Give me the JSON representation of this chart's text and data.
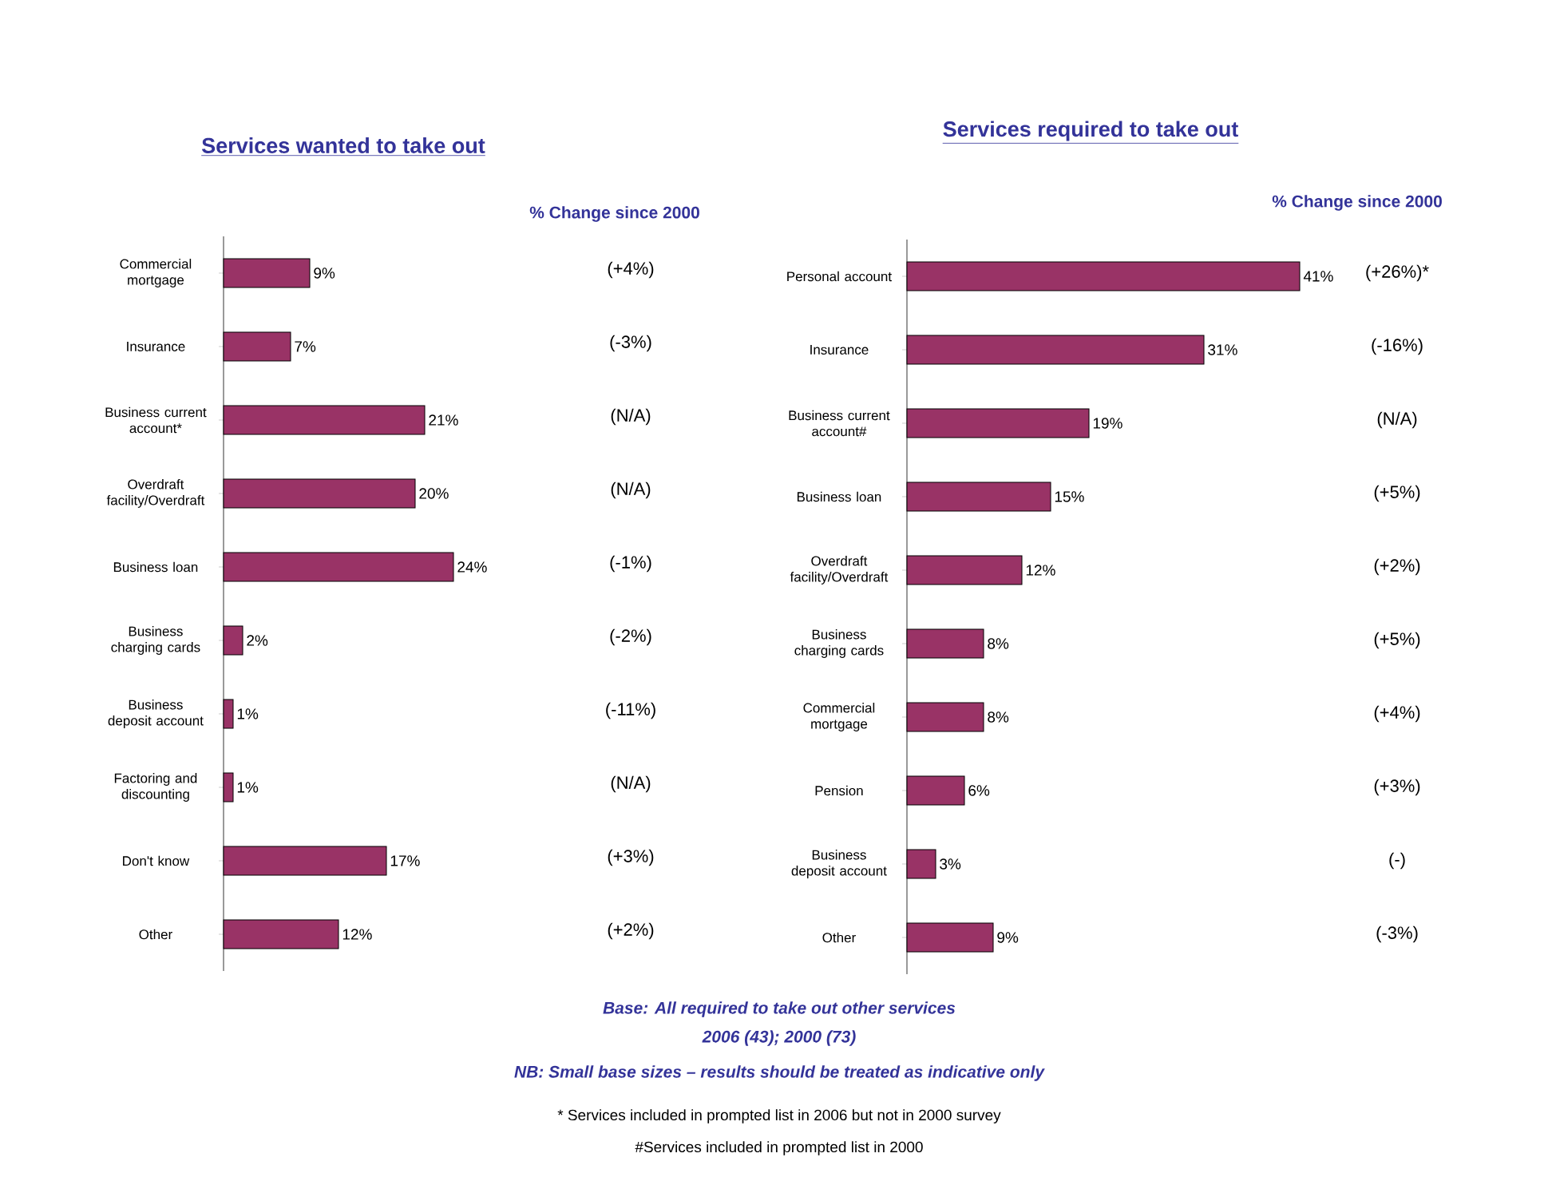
{
  "chart_data": [
    {
      "type": "bar",
      "orientation": "horizontal",
      "title": "Services wanted to take out",
      "categories": [
        "Commercial mortgage",
        "Insurance",
        "Business current account*",
        "Overdraft facility/Overdraft",
        "Business loan",
        "Business charging cards",
        "Business deposit account",
        "Factoring and discounting",
        "Don't know",
        "Other"
      ],
      "values": [
        9,
        7,
        21,
        20,
        24,
        2,
        1,
        1,
        17,
        12
      ],
      "value_labels": [
        "9%",
        "7%",
        "21%",
        "20%",
        "24%",
        "2%",
        "1%",
        "1%",
        "17%",
        "12%"
      ],
      "color": "#993366",
      "annotations": [
        "% Change since 2000",
        "(+4%)",
        "(-3%)",
        "(N/A)",
        "(N/A)",
        "(-1%)",
        "(-2%)",
        "(-11%)",
        "(N/A)",
        "(+3%)",
        "(+2%)"
      ]
    },
    {
      "type": "bar",
      "orientation": "horizontal",
      "title": "Services required to take out",
      "categories": [
        "Personal account",
        "Insurance",
        "Business current account#",
        "Business loan",
        "Overdraft facility/Overdraft",
        "Business charging cards",
        "Commercial mortgage",
        "Pension",
        "Business deposit account",
        "Other"
      ],
      "values": [
        41,
        31,
        19,
        15,
        12,
        8,
        8,
        6,
        3,
        9
      ],
      "value_labels": [
        "41%",
        "31%",
        "19%",
        "15%",
        "12%",
        "8%",
        "8%",
        "6%",
        "3%",
        "9%"
      ],
      "color": "#993366",
      "annotations": [
        "% Change since 2000",
        "(+26%)*",
        "(-16%)",
        "(N/A)",
        "(+5%)",
        "(+2%)",
        "(+5%)",
        "(+4%)",
        "(+3%)",
        "(-)",
        "(-3%)"
      ]
    },
    {
      "type": "other",
      "annotations": [
        "Base: All required to take out other services",
        "2006 (43); 2000 (73)",
        "NB: Small base sizes – results should be treated as indicative only",
        "* Services included in prompted list in 2006 but not in 2000 survey",
        "#Services included in prompted list in 2000"
      ]
    }
  ]
}
